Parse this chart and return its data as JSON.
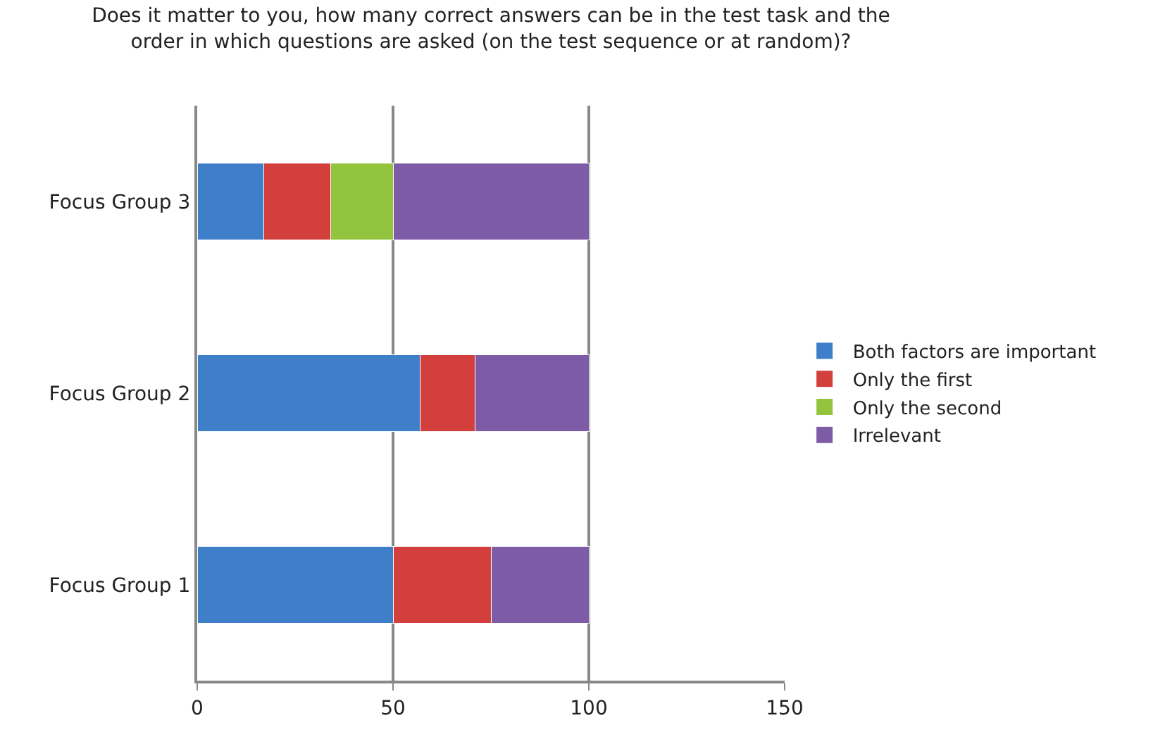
{
  "chart_data": {
    "type": "bar",
    "orientation": "horizontal",
    "stacked": true,
    "title": "Does it matter to you, how many correct answers can be in the test task and the order in which questions are asked (on the test sequence or at random)?",
    "categories": [
      "Focus Group 3",
      "Focus Group 2",
      "Focus Group 1"
    ],
    "series": [
      {
        "name": "Both factors are important",
        "color": "#3f7fc9",
        "values": [
          17,
          57,
          50
        ]
      },
      {
        "name": "Only the first",
        "color": "#d23f3c",
        "values": [
          17,
          14,
          25
        ]
      },
      {
        "name": "Only the second",
        "color": "#93c43d",
        "values": [
          16,
          0,
          0
        ]
      },
      {
        "name": "Irrelevant",
        "color": "#7d5ba6",
        "values": [
          50,
          29,
          25
        ]
      }
    ],
    "xlim": [
      0,
      150
    ],
    "xticks": [
      0,
      50,
      100,
      150
    ],
    "grid": "x",
    "legend": "right"
  }
}
